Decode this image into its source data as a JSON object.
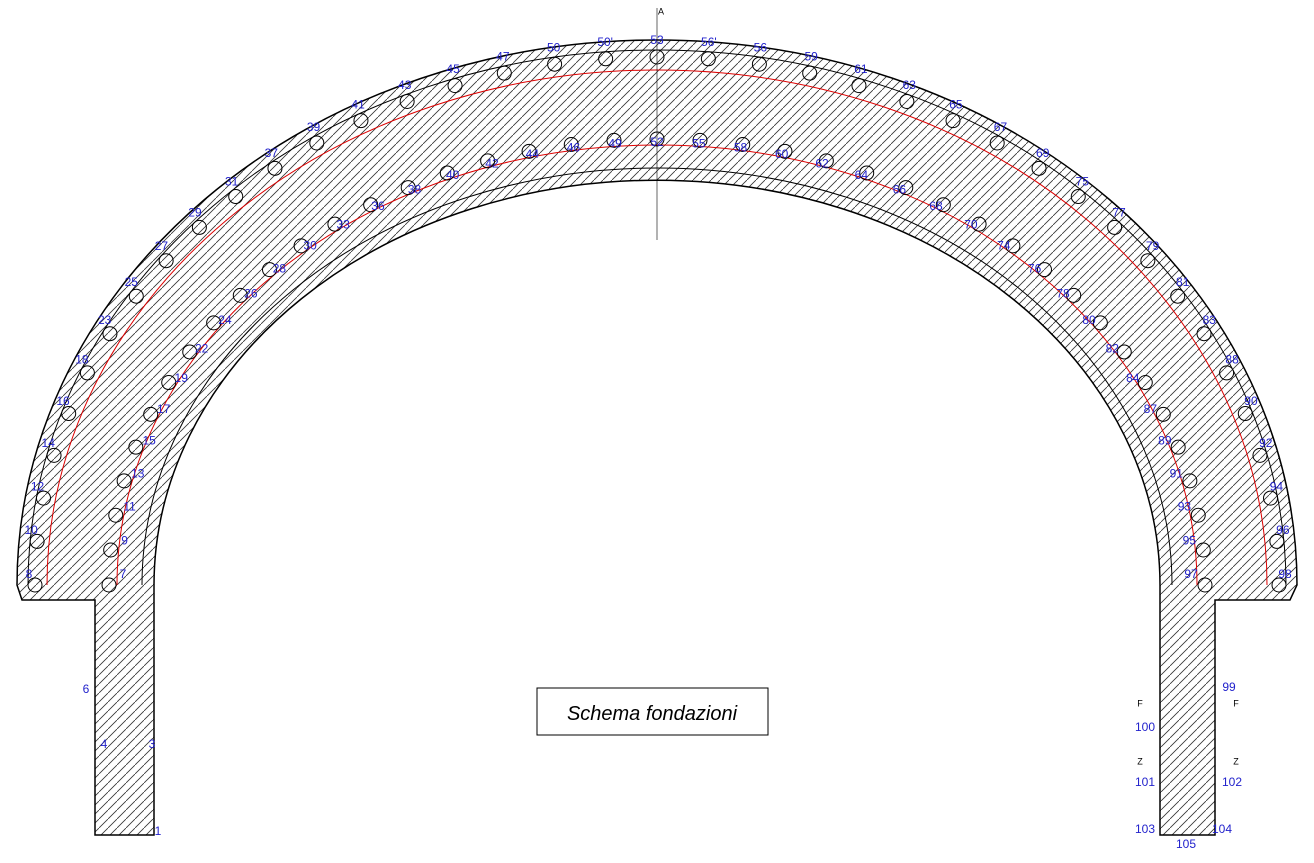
{
  "title": "Schema fondazioni",
  "outer_piles": [
    "8",
    "10",
    "12",
    "14",
    "16",
    "18",
    "23",
    "25",
    "27",
    "29",
    "31",
    "37",
    "39",
    "41",
    "43",
    "45",
    "47",
    "50",
    "50'",
    "53",
    "56'",
    "56",
    "59",
    "61",
    "63",
    "65",
    "67",
    "69",
    "75",
    "77",
    "79",
    "81",
    "83",
    "88",
    "90",
    "92",
    "94",
    "96",
    "98"
  ],
  "inner_piles": [
    "7",
    "9",
    "11",
    "13",
    "15",
    "17",
    "19",
    "22",
    "24",
    "26",
    "28",
    "30",
    "33",
    "36",
    "38",
    "40",
    "42",
    "44",
    "46",
    "49",
    "52",
    "55",
    "58",
    "60",
    "62",
    "64",
    "66",
    "68",
    "70",
    "74",
    "76",
    "78",
    "80",
    "82",
    "84",
    "87",
    "89",
    "91",
    "93",
    "95",
    "97"
  ],
  "other_labels": [
    "1",
    "3",
    "4",
    "6",
    "99",
    "100",
    "101",
    "102",
    "103",
    "104",
    "105"
  ],
  "section_marks": [
    "A",
    "F",
    "F",
    "Z",
    "Z"
  ]
}
